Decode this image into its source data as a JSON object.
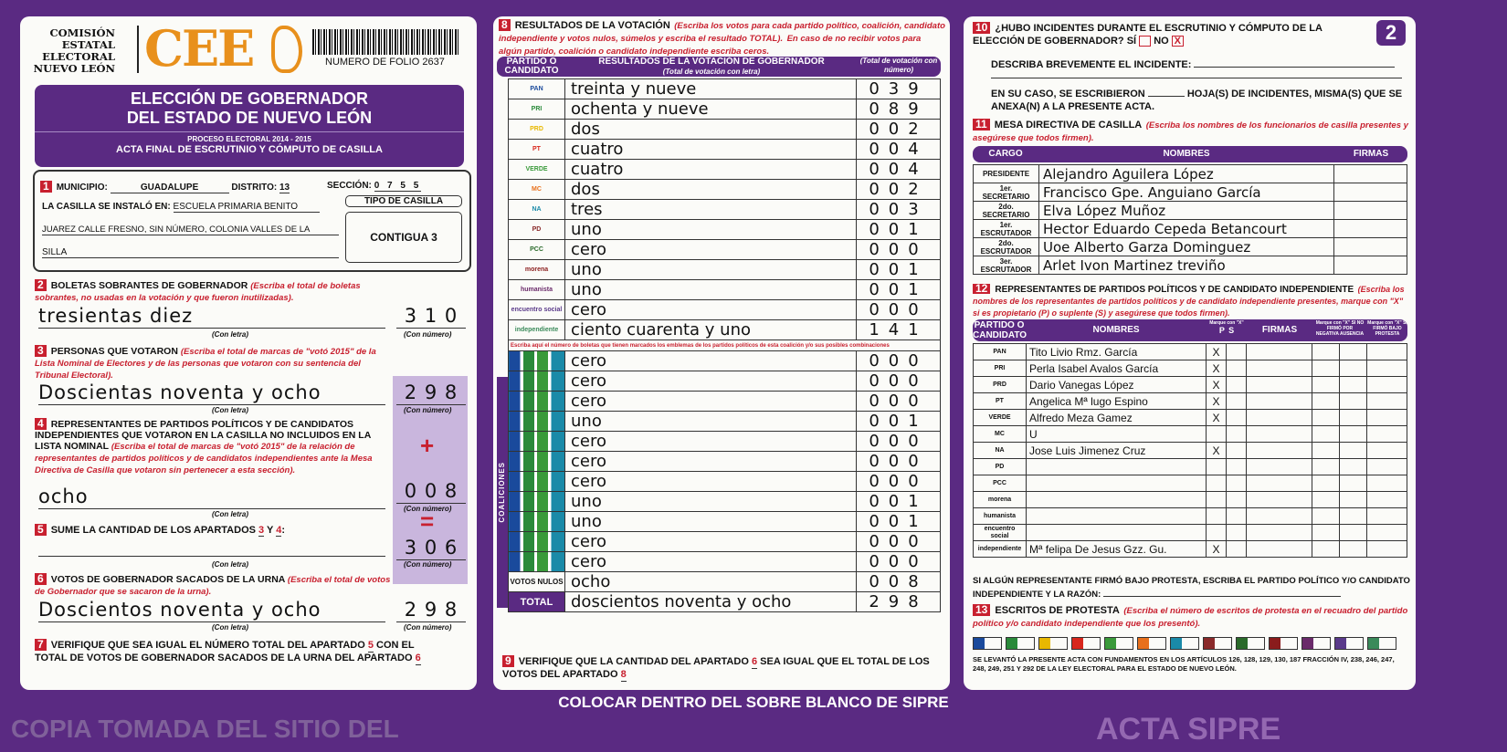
{
  "header": {
    "org": [
      "COMISIÓN",
      "ESTATAL",
      "ELECTORAL",
      "NUEVO LEÓN"
    ],
    "logo": "CEE",
    "folio": "NUMERO DE FOLIO 2637",
    "title1": "ELECCIÓN DE GOBERNADOR",
    "title2": "DEL ESTADO DE NUEVO LEÓN",
    "process": "PROCESO ELECTORAL 2014 - 2015",
    "acta": "ACTA FINAL DE ESCRUTINIO Y CÓMPUTO DE CASILLA",
    "page_number": "2"
  },
  "s1": {
    "n": "1",
    "municipio_label": "MUNICIPIO:",
    "municipio": "GUADALUPE",
    "distrito_label": "DISTRITO:",
    "distrito": "13",
    "seccion_label": "SECCIÓN:",
    "seccion": "0 7 5 5",
    "instalo_label": "LA CASILLA SE INSTALÓ EN:",
    "instalo1": "ESCUELA PRIMARIA BENITO",
    "instalo2": "JUAREZ CALLE FRESNO, SIN NÚMERO, COLONIA VALLES DE LA",
    "instalo3": "SILLA",
    "tipo_label": "TIPO DE CASILLA",
    "tipo": "CONTIGUA 3"
  },
  "s2": {
    "n": "2",
    "title": "BOLETAS SOBRANTES DE GOBERNADOR",
    "note": "(Escriba el total de boletas sobrantes, no usadas en la votación y que fueron inutilizadas).",
    "letra": "tresientas diez",
    "numero": "3 1 0",
    "con_letra": "(Con letra)",
    "con_numero": "(Con número)"
  },
  "s3": {
    "n": "3",
    "title": "PERSONAS QUE VOTARON",
    "note": "(Escriba el total de marcas de \"votó 2015\" de la Lista Nominal de Electores y de las personas que votaron con su sentencia del Tribunal Electoral).",
    "letra": "Doscientas noventa y ocho",
    "numero": "2 9 8"
  },
  "s4": {
    "n": "4",
    "title": "REPRESENTANTES DE PARTIDOS POLÍTICOS Y DE CANDIDATOS INDEPENDIENTES QUE VOTARON EN LA CASILLA NO INCLUIDOS EN LA LISTA NOMINAL",
    "note": "(Escriba el total de marcas de \"votó 2015\" de la relación de representantes de partidos políticos y de candidatos independientes ante la Mesa Directiva de Casilla que votaron sin pertenecer a esta sección).",
    "letra": "ocho",
    "numero": "0 0 8",
    "plus": "+",
    "equals": "="
  },
  "s5": {
    "n": "5",
    "title": "SUME LA CANTIDAD DE LOS APARTADOS",
    "a": "3",
    "y": "Y",
    "b": "4",
    "numero": "3 0 6"
  },
  "s6": {
    "n": "6",
    "title": "VOTOS DE GOBERNADOR SACADOS DE LA URNA",
    "note": "(Escriba el total de votos de Gobernador que se sacaron de la urna).",
    "letra": "Doscientos noventa y ocho",
    "numero": "2 9 8"
  },
  "s7": {
    "n": "7",
    "text1": "VERIFIQUE QUE SEA IGUAL EL NÚMERO TOTAL DEL APARTADO",
    "a": "5",
    "text2": "CON EL TOTAL DE VOTOS DE GOBERNADOR SACADOS DE LA URNA DEL APARTADO",
    "b": "6"
  },
  "s8": {
    "n": "8",
    "title": "RESULTADOS DE LA VOTACIÓN",
    "note": "(Escriba los votos para cada partido político, coalición, candidato independiente y votos nulos, súmelos y escriba el resultado TOTAL).",
    "note2": "En caso de no recibir votos para algún partido, coalición o candidato independiente escriba ceros.",
    "col1": "PARTIDO O CANDIDATO",
    "col2": "RESULTADOS DE LA VOTACIÓN DE GOBERNADOR",
    "col2sub": "(Total de votación con letra)",
    "col3": "(Total de votación con número)",
    "coalition_note": "Escriba aquí el número de boletas que tienen marcados los emblemas de los partidos políticos de esta coalición y/o sus posibles combinaciones",
    "coalition_label": "COALICIONES",
    "rows": [
      {
        "party": "PAN",
        "letra": "treinta y nueve",
        "num": "039",
        "color": "#1a4a9c"
      },
      {
        "party": "PRI",
        "letra": "ochenta y nueve",
        "num": "089",
        "color": "#2a8a3a"
      },
      {
        "party": "PRD",
        "letra": "dos",
        "num": "002",
        "color": "#e8b800"
      },
      {
        "party": "PT",
        "letra": "cuatro",
        "num": "004",
        "color": "#d8261c"
      },
      {
        "party": "VERDE",
        "letra": "cuatro",
        "num": "004",
        "color": "#3a9a3a"
      },
      {
        "party": "MC",
        "letra": "dos",
        "num": "002",
        "color": "#e8701c"
      },
      {
        "party": "NA",
        "letra": "tres",
        "num": "003",
        "color": "#1a8aa8"
      },
      {
        "party": "PD",
        "letra": "uno",
        "num": "001",
        "color": "#8a2a2a"
      },
      {
        "party": "PCC",
        "letra": "cero",
        "num": "000",
        "color": "#2a6a2a"
      },
      {
        "party": "morena",
        "letra": "uno",
        "num": "001",
        "color": "#8a1c1c"
      },
      {
        "party": "humanista",
        "letra": "uno",
        "num": "001",
        "color": "#6a2a6a"
      },
      {
        "party": "encuentro social",
        "letra": "cero",
        "num": "000",
        "color": "#5a3a8a"
      },
      {
        "party": "independiente",
        "letra": "ciento cuarenta y uno",
        "num": "141",
        "color": "#3a8a5a"
      }
    ],
    "coalitions": [
      {
        "letra": "cero",
        "num": "000"
      },
      {
        "letra": "cero",
        "num": "000"
      },
      {
        "letra": "cero",
        "num": "000"
      },
      {
        "letra": "uno",
        "num": "001"
      },
      {
        "letra": "cero",
        "num": "000"
      },
      {
        "letra": "cero",
        "num": "000"
      },
      {
        "letra": "cero",
        "num": "000"
      },
      {
        "letra": "uno",
        "num": "001"
      },
      {
        "letra": "uno",
        "num": "001"
      },
      {
        "letra": "cero",
        "num": "000"
      },
      {
        "letra": "cero",
        "num": "000"
      }
    ],
    "nulos_label": "VOTOS NULOS",
    "nulos_letra": "ocho",
    "nulos_num": "008",
    "total_label": "TOTAL",
    "total_letra": "doscientos noventa y ocho",
    "total_num": "298",
    "watermark": "ACTA SIPRE"
  },
  "s9": {
    "n": "9",
    "text1": "VERIFIQUE QUE LA CANTIDAD DEL APARTADO",
    "a": "6",
    "text2": "SEA IGUAL QUE EL TOTAL DE LOS VOTOS DEL APARTADO",
    "b": "8"
  },
  "s10": {
    "n": "10",
    "q": "¿HUBO INCIDENTES DURANTE EL ESCRUTINIO Y CÓMPUTO DE LA ELECCIÓN DE GOBERNADOR?",
    "si": "SÍ",
    "no": "NO",
    "no_mark": "X",
    "describe": "DESCRIBA BREVEMENTE EL INCIDENTE:",
    "hojas1": "EN SU CASO, SE ESCRIBIERON",
    "hojas2": "HOJA(S) DE INCIDENTES, MISMA(S) QUE SE ANEXA(N) A LA PRESENTE ACTA.",
    "con_numero": "(Con número)"
  },
  "s11": {
    "n": "11",
    "title": "MESA DIRECTIVA DE CASILLA",
    "note": "(Escriba los nombres de los funcionarios de casilla presentes y asegúrese que todos firmen).",
    "col1": "CARGO",
    "col2": "NOMBRES",
    "col3": "FIRMAS",
    "rows": [
      {
        "cargo": "PRESIDENTE",
        "nombre": "Alejandro Aguilera López"
      },
      {
        "cargo": "1er. SECRETARIO",
        "nombre": "Francisco Gpe. Anguiano García"
      },
      {
        "cargo": "2do. SECRETARIO",
        "nombre": "Elva López Muñoz"
      },
      {
        "cargo": "1er. ESCRUTADOR",
        "nombre": "Hector Eduardo Cepeda Betancourt"
      },
      {
        "cargo": "2do. ESCRUTADOR",
        "nombre": "Uoe Alberto Garza Dominguez"
      },
      {
        "cargo": "3er. ESCRUTADOR",
        "nombre": "Arlet Ivon Martinez treviño"
      }
    ]
  },
  "s12": {
    "n": "12",
    "title": "REPRESENTANTES DE PARTIDOS POLÍTICOS Y DE CANDIDATO INDEPENDIENTE",
    "note": "(Escriba los nombres de los representantes de partidos políticos y de candidato independiente presentes, marque con \"X\" si es propietario (P) o suplente (S) y asegúrese que todos firmen).",
    "col1": "PARTIDO O CANDIDATO",
    "col2": "NOMBRES",
    "col_ps": "Marque con \"X\"",
    "p": "P",
    "s": "S",
    "col3": "FIRMAS",
    "col4": "Marque con \"X\" SI NO FIRMÓ POR",
    "neg": "NEGATIVA",
    "aus": "AUSENCIA",
    "col5": "Marque con \"X\" SI FIRMÓ BAJO PROTESTA",
    "rows": [
      {
        "party": "PAN",
        "nombre": "Tito Livio Rmz. García",
        "p": "X"
      },
      {
        "party": "PRI",
        "nombre": "Perla Isabel Avalos García",
        "p": "X"
      },
      {
        "party": "PRD",
        "nombre": "Dario Vanegas López",
        "p": "X"
      },
      {
        "party": "PT",
        "nombre": "Angelica Mª lugo Espino",
        "p": "X"
      },
      {
        "party": "VERDE",
        "nombre": "Alfredo Meza Gamez",
        "p": "X"
      },
      {
        "party": "MC",
        "nombre": "U",
        "p": ""
      },
      {
        "party": "NA",
        "nombre": "Jose Luis Jimenez Cruz",
        "p": "X"
      },
      {
        "party": "PD",
        "nombre": "",
        "p": ""
      },
      {
        "party": "PCC",
        "nombre": "",
        "p": ""
      },
      {
        "party": "morena",
        "nombre": "",
        "p": ""
      },
      {
        "party": "humanista",
        "nombre": "",
        "p": ""
      },
      {
        "party": "encuentro social",
        "nombre": "",
        "p": ""
      },
      {
        "party": "independiente",
        "nombre": "Mª felipa De Jesus Gzz. Gu.",
        "p": "X"
      }
    ],
    "protesta": "SI ALGÚN REPRESENTANTE FIRMÓ BAJO PROTESTA, ESCRIBA EL PARTIDO POLÍTICO Y/O CANDIDATO INDEPENDIENTE Y LA RAZÓN:"
  },
  "s13": {
    "n": "13",
    "title": "ESCRITOS DE PROTESTA",
    "note": "(Escriba el número de escritos de protesta en el recuadro del partido político y/o candidato independiente que los presentó)."
  },
  "legal": "SE LEVANTÓ LA PRESENTE ACTA CON FUNDAMENTOS EN LOS ARTÍCULOS 126, 128, 129, 130, 187 FRACCIÓN IV, 238, 246, 247, 248, 249, 251 Y 292 DE LA LEY ELECTORAL PARA EL ESTADO DE NUEVO LEÓN.",
  "footer": "COLOCAR DENTRO DEL SOBRE BLANCO DE SIPRE",
  "copy_watermark": "COPIA TOMADA DEL SITIO DEL"
}
